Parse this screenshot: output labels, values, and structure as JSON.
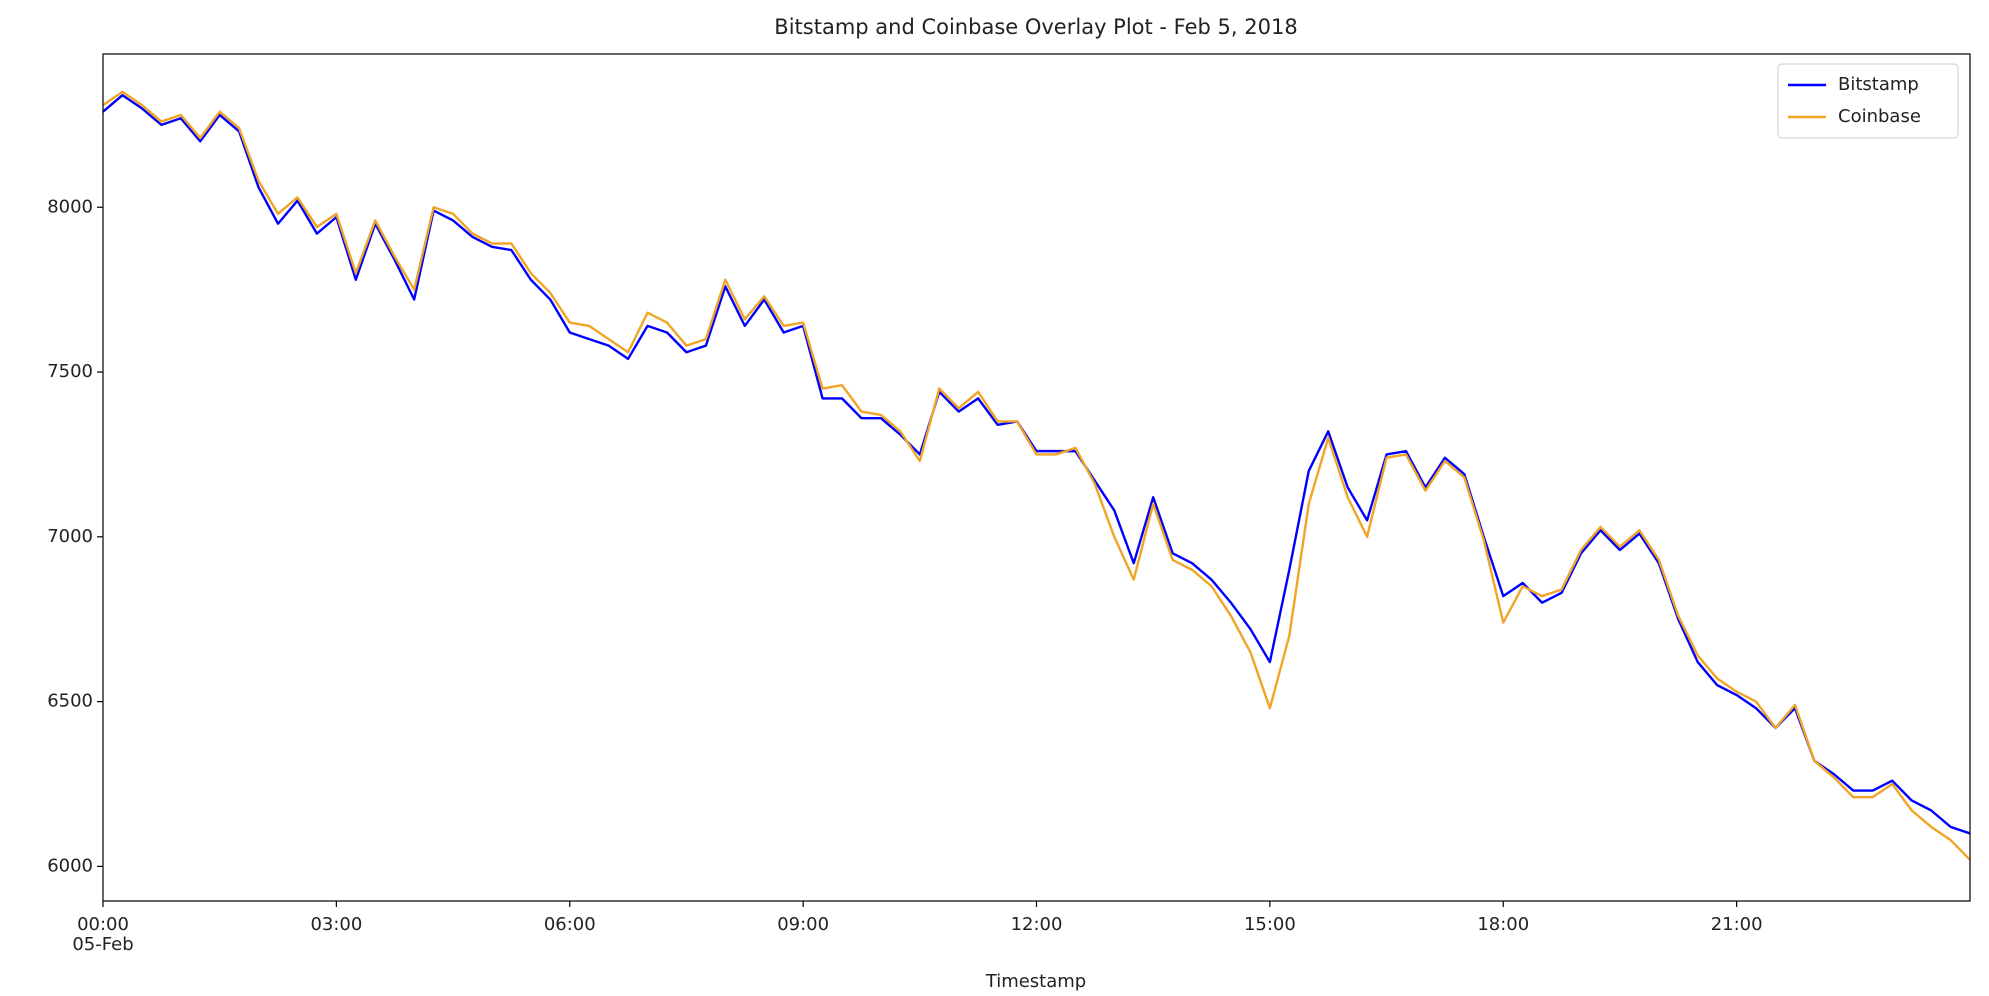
{
  "chart_data": {
    "type": "line",
    "title": "Bitstamp and Coinbase Overlay Plot - Feb 5, 2018",
    "x_label": "Timestamp",
    "x_date_label": "05-Feb",
    "x": [
      0,
      0.25,
      0.5,
      0.75,
      1,
      1.25,
      1.5,
      1.75,
      2,
      2.25,
      2.5,
      2.75,
      3,
      3.25,
      3.5,
      3.75,
      4,
      4.25,
      4.5,
      4.75,
      5,
      5.25,
      5.5,
      5.75,
      6,
      6.25,
      6.5,
      6.75,
      7,
      7.25,
      7.5,
      7.75,
      8,
      8.25,
      8.5,
      8.75,
      9,
      9.25,
      9.5,
      9.75,
      10,
      10.25,
      10.5,
      10.75,
      11,
      11.25,
      11.5,
      11.75,
      12,
      12.25,
      12.5,
      12.75,
      13,
      13.25,
      13.5,
      13.75,
      14,
      14.25,
      14.5,
      14.75,
      15,
      15.25,
      15.5,
      15.75,
      16,
      16.25,
      16.5,
      16.75,
      17,
      17.25,
      17.5,
      17.75,
      18,
      18.25,
      18.5,
      18.75,
      19,
      19.25,
      19.5,
      19.75,
      20,
      20.25,
      20.5,
      20.75,
      21,
      21.25,
      21.5,
      21.75,
      22,
      22.25,
      22.5,
      22.75,
      23,
      23.25,
      23.5,
      23.75,
      24
    ],
    "series": [
      {
        "name": "Bitstamp",
        "color": "#0000ff",
        "values": [
          8290,
          8340,
          8300,
          8250,
          8270,
          8200,
          8280,
          8230,
          8060,
          7950,
          8020,
          7920,
          7970,
          7780,
          7950,
          7840,
          7720,
          7990,
          7960,
          7910,
          7880,
          7870,
          7780,
          7720,
          7620,
          7600,
          7580,
          7540,
          7640,
          7620,
          7560,
          7580,
          7760,
          7640,
          7720,
          7620,
          7640,
          7420,
          7420,
          7360,
          7360,
          7310,
          7250,
          7440,
          7380,
          7420,
          7340,
          7350,
          7260,
          7260,
          7260,
          7170,
          7080,
          6920,
          7120,
          6950,
          6920,
          6870,
          6800,
          6720,
          6620,
          6900,
          7200,
          7320,
          7150,
          7050,
          7250,
          7260,
          7150,
          7240,
          7190,
          7000,
          6820,
          6860,
          6800,
          6830,
          6950,
          7020,
          6960,
          7010,
          6920,
          6750,
          6620,
          6550,
          6520,
          6480,
          6420,
          6480,
          6320,
          6280,
          6230,
          6230,
          6260,
          6200,
          6170,
          6120,
          6100
        ]
      },
      {
        "name": "Coinbase",
        "color": "#f0a526",
        "values": [
          8310,
          8350,
          8310,
          8260,
          8280,
          8210,
          8290,
          8240,
          8080,
          7980,
          8030,
          7940,
          7980,
          7800,
          7960,
          7850,
          7750,
          8000,
          7980,
          7920,
          7890,
          7890,
          7800,
          7740,
          7650,
          7640,
          7600,
          7560,
          7680,
          7650,
          7580,
          7600,
          7780,
          7660,
          7730,
          7640,
          7650,
          7450,
          7460,
          7380,
          7370,
          7320,
          7230,
          7450,
          7390,
          7440,
          7350,
          7350,
          7250,
          7250,
          7270,
          7160,
          7000,
          6870,
          7100,
          6930,
          6900,
          6850,
          6760,
          6650,
          6480,
          6700,
          7100,
          7300,
          7120,
          7000,
          7240,
          7250,
          7140,
          7230,
          7180,
          6990,
          6740,
          6850,
          6820,
          6840,
          6960,
          7030,
          6970,
          7020,
          6930,
          6760,
          6640,
          6570,
          6530,
          6500,
          6420,
          6490,
          6320,
          6270,
          6210,
          6210,
          6250,
          6170,
          6120,
          6080,
          6020
        ]
      }
    ],
    "xlim": [
      0,
      24
    ],
    "xticks": [
      {
        "value": 0,
        "label": "00:00"
      },
      {
        "value": 3,
        "label": "03:00"
      },
      {
        "value": 6,
        "label": "06:00"
      },
      {
        "value": 9,
        "label": "09:00"
      },
      {
        "value": 12,
        "label": "12:00"
      },
      {
        "value": 15,
        "label": "15:00"
      },
      {
        "value": 18,
        "label": "18:00"
      },
      {
        "value": 21,
        "label": "21:00"
      }
    ],
    "ylim": [
      5895,
      8465
    ],
    "yticks": [
      6000,
      6500,
      7000,
      7500,
      8000
    ],
    "grid": false,
    "legend": "upper right"
  }
}
